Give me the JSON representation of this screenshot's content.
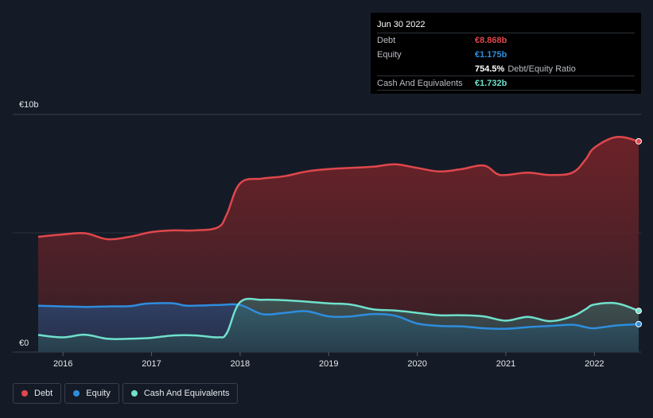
{
  "chart_data": {
    "type": "area",
    "title": "",
    "ylabel": "",
    "y_axis_labels": {
      "top": "€10b",
      "bottom": "€0"
    },
    "ylim": [
      0,
      10
    ],
    "xlim": [
      2015.72,
      2022.5
    ],
    "x_ticks": [
      {
        "value": 2016,
        "label": "2016"
      },
      {
        "value": 2017,
        "label": "2017"
      },
      {
        "value": 2018,
        "label": "2018"
      },
      {
        "value": 2019,
        "label": "2019"
      },
      {
        "value": 2020,
        "label": "2020"
      },
      {
        "value": 2021,
        "label": "2021"
      },
      {
        "value": 2022,
        "label": "2022"
      }
    ],
    "series": [
      {
        "name": "Debt",
        "color": "#e0474c",
        "x": [
          2015.72,
          2016.0,
          2016.25,
          2016.5,
          2016.75,
          2017.0,
          2017.25,
          2017.5,
          2017.75,
          2017.85,
          2018.0,
          2018.25,
          2018.5,
          2018.75,
          2019.0,
          2019.25,
          2019.5,
          2019.75,
          2020.0,
          2020.25,
          2020.5,
          2020.75,
          2020.9,
          2021.0,
          2021.25,
          2021.5,
          2021.75,
          2021.9,
          2022.0,
          2022.25,
          2022.5
        ],
        "values": [
          4.85,
          4.95,
          5.0,
          4.75,
          4.85,
          5.05,
          5.12,
          5.12,
          5.25,
          5.8,
          7.1,
          7.3,
          7.4,
          7.6,
          7.7,
          7.75,
          7.8,
          7.9,
          7.75,
          7.6,
          7.7,
          7.85,
          7.5,
          7.45,
          7.55,
          7.45,
          7.55,
          8.1,
          8.6,
          9.05,
          8.868
        ]
      },
      {
        "name": "Equity",
        "color": "#2e8ddd",
        "x": [
          2015.72,
          2016.0,
          2016.25,
          2016.5,
          2016.75,
          2016.9,
          2017.0,
          2017.25,
          2017.4,
          2017.75,
          2018.0,
          2018.25,
          2018.5,
          2018.75,
          2019.0,
          2019.25,
          2019.5,
          2019.75,
          2020.0,
          2020.25,
          2020.5,
          2020.75,
          2021.0,
          2021.25,
          2021.5,
          2021.75,
          2021.9,
          2022.0,
          2022.25,
          2022.5
        ],
        "values": [
          1.95,
          1.92,
          1.9,
          1.92,
          1.93,
          2.02,
          2.05,
          2.05,
          1.95,
          1.98,
          1.98,
          1.6,
          1.65,
          1.72,
          1.5,
          1.5,
          1.6,
          1.53,
          1.2,
          1.1,
          1.08,
          1.0,
          0.98,
          1.05,
          1.1,
          1.15,
          1.05,
          1.0,
          1.12,
          1.175
        ]
      },
      {
        "name": "Cash And Equivalents",
        "color": "#6fe0cc",
        "x": [
          2015.72,
          2016.0,
          2016.25,
          2016.5,
          2016.75,
          2017.0,
          2017.25,
          2017.5,
          2017.75,
          2017.85,
          2018.0,
          2018.25,
          2018.5,
          2018.75,
          2019.0,
          2019.25,
          2019.5,
          2019.75,
          2020.0,
          2020.25,
          2020.5,
          2020.75,
          2021.0,
          2021.25,
          2021.5,
          2021.75,
          2021.9,
          2022.0,
          2022.25,
          2022.5
        ],
        "values": [
          0.72,
          0.62,
          0.73,
          0.56,
          0.56,
          0.6,
          0.7,
          0.7,
          0.62,
          0.8,
          2.1,
          2.2,
          2.18,
          2.12,
          2.05,
          2.0,
          1.8,
          1.75,
          1.65,
          1.55,
          1.55,
          1.5,
          1.32,
          1.48,
          1.3,
          1.5,
          1.8,
          2.0,
          2.05,
          1.732
        ]
      }
    ]
  },
  "tooltip": {
    "date": "Jun 30 2022",
    "rows": [
      {
        "label": "Debt",
        "value": "€8.868b",
        "color": "#e0474c"
      },
      {
        "label": "Equity",
        "value": "€1.175b",
        "color": "#2e8ddd"
      },
      {
        "label": "",
        "value": "754.5%",
        "suffix": "Debt/Equity Ratio",
        "color": "#ffffff"
      },
      {
        "label": "Cash And Equivalents",
        "value": "€1.732b",
        "color": "#6fe0cc"
      }
    ]
  },
  "legend": [
    {
      "label": "Debt",
      "color": "#e0474c"
    },
    {
      "label": "Equity",
      "color": "#2e8ddd"
    },
    {
      "label": "Cash And Equivalents",
      "color": "#6fe0cc"
    }
  ]
}
